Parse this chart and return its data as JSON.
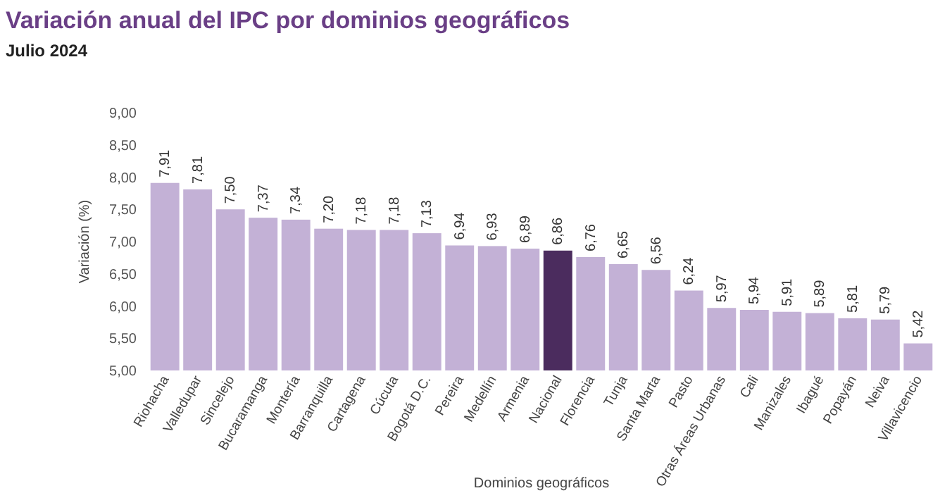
{
  "chart_data": {
    "type": "bar",
    "title": "Variación anual del IPC por dominios geográficos",
    "subtitle": "Julio 2024",
    "xlabel": "Dominios geográficos",
    "ylabel": "Variación (%)",
    "categories": [
      "Riohacha",
      "Valledupar",
      "Sincelejo",
      "Bucaramanga",
      "Montería",
      "Barranquilla",
      "Cartagena",
      "Cúcuta",
      "Bogotá D.C.",
      "Pereira",
      "Medellín",
      "Armenia",
      "Nacional",
      "Florencia",
      "Tunja",
      "Santa Marta",
      "Pasto",
      "Otras Áreas Urbanas",
      "Cali",
      "Manizales",
      "Ibagué",
      "Popayán",
      "Neiva",
      "Villavicencio"
    ],
    "values": [
      7.91,
      7.81,
      7.5,
      7.37,
      7.34,
      7.2,
      7.18,
      7.18,
      7.13,
      6.94,
      6.93,
      6.89,
      6.86,
      6.76,
      6.65,
      6.56,
      6.24,
      5.97,
      5.94,
      5.91,
      5.89,
      5.81,
      5.79,
      5.42
    ],
    "colors": [
      "#c3b1d6",
      "#c3b1d6",
      "#c3b1d6",
      "#c3b1d6",
      "#c3b1d6",
      "#c3b1d6",
      "#c3b1d6",
      "#c3b1d6",
      "#c3b1d6",
      "#c3b1d6",
      "#c3b1d6",
      "#c3b1d6",
      "#4b2c5e",
      "#c3b1d6",
      "#c3b1d6",
      "#c3b1d6",
      "#c3b1d6",
      "#c3b1d6",
      "#c3b1d6",
      "#c3b1d6",
      "#c3b1d6",
      "#c3b1d6",
      "#c3b1d6",
      "#c3b1d6"
    ],
    "value_labels": [
      "7,91",
      "7,81",
      "7,50",
      "7,37",
      "7,34",
      "7,20",
      "7,18",
      "7,18",
      "7,13",
      "6,94",
      "6,93",
      "6,89",
      "6,86",
      "6,76",
      "6,65",
      "6,56",
      "6,24",
      "5,97",
      "5,94",
      "5,91",
      "5,89",
      "5,81",
      "5,79",
      "5,42"
    ],
    "ylim": [
      5,
      9
    ],
    "yticks": [
      {
        "value": 5,
        "label": "5,00"
      },
      {
        "value": 5.5,
        "label": "5,50"
      },
      {
        "value": 6,
        "label": "6,00"
      },
      {
        "value": 6.5,
        "label": "6,50"
      },
      {
        "value": 7,
        "label": "7,00"
      },
      {
        "value": 7.5,
        "label": "7,50"
      },
      {
        "value": 8,
        "label": "8,00"
      },
      {
        "value": 8.5,
        "label": "8,50"
      },
      {
        "value": 9,
        "label": "9,00"
      }
    ],
    "grid": false
  }
}
